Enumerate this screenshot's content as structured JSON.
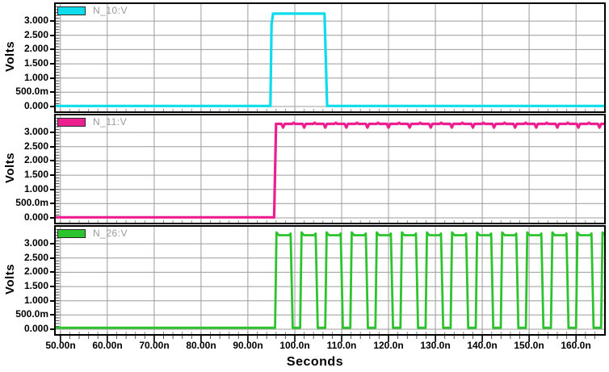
{
  "figure": {
    "background": "#ffffff",
    "frame_color": "#000000",
    "grid_color": "#9c9c9c",
    "minor_tick_color": "#444444",
    "tick_label_color": "#000000",
    "legend_text_color": "#9a9a9a"
  },
  "y_axis": {
    "title": "Volts",
    "ticks": [
      {
        "label": "0.000",
        "value": 0
      },
      {
        "label": "500.0m",
        "value": 0.5
      },
      {
        "label": "1.000",
        "value": 1
      },
      {
        "label": "1.500",
        "value": 1.5
      },
      {
        "label": "2.000",
        "value": 2
      },
      {
        "label": "2.500",
        "value": 2.5
      },
      {
        "label": "3.000",
        "value": 3
      }
    ],
    "minor_tick_step_v": 0.1,
    "range_volts": [
      -0.17,
      3.6
    ]
  },
  "x_axis": {
    "title": "Seconds",
    "ticks": [
      {
        "label": "50.00n",
        "value": 50
      },
      {
        "label": "60.00n",
        "value": 60
      },
      {
        "label": "70.00n",
        "value": 70
      },
      {
        "label": "80.00n",
        "value": 80
      },
      {
        "label": "90.00n",
        "value": 90
      },
      {
        "label": "100.0n",
        "value": 100
      },
      {
        "label": "110.0n",
        "value": 110
      },
      {
        "label": "120.0n",
        "value": 120
      },
      {
        "label": "130.0n",
        "value": 130
      },
      {
        "label": "140.0n",
        "value": 140
      },
      {
        "label": "150.0n",
        "value": 150
      },
      {
        "label": "160.0n",
        "value": 160
      }
    ],
    "minor_tick_step_ns": 2,
    "range_ns": [
      49,
      166
    ]
  },
  "panels": [
    {
      "legend": "N_10:V",
      "color": "#0cdcec"
    },
    {
      "legend": "N_11:V",
      "color": "#ec1e90"
    },
    {
      "legend": "N_26:V",
      "color": "#2cc42c"
    }
  ],
  "chart_data": {
    "type": "line",
    "title": "",
    "xlabel": "Seconds",
    "ylabel": "Volts",
    "x_range_ns": [
      49,
      166
    ],
    "y_range_volts": [
      -0.17,
      3.6
    ],
    "x_ticks_ns": [
      50,
      60,
      70,
      80,
      90,
      100,
      110,
      120,
      130,
      140,
      150,
      160
    ],
    "y_ticks_volts": [
      0,
      0.5,
      1,
      1.5,
      2,
      2.5,
      3
    ],
    "grid": true,
    "legend_position": "top-left-of-each-panel",
    "series": [
      {
        "name": "N_10:V",
        "panel": 0,
        "color": "#0cdcec",
        "shape": "pulse",
        "low_v": 0.02,
        "high_v": 3.26,
        "rise_ns": 94.8,
        "fall_ns": 106.6
      },
      {
        "name": "N_11:V",
        "panel": 1,
        "color": "#ec1e90",
        "shape": "step",
        "low_v": 0.02,
        "high_v": 3.3,
        "rise_ns": 95.6,
        "ripple_start_ns": 97.5,
        "ripple_spacing_ns": 2.25,
        "ripple_dip_v": 0.13,
        "ripple_bump_v": 0.04
      },
      {
        "name": "N_26:V",
        "panel": 2,
        "color": "#2cc42c",
        "shape": "clock",
        "low_v": 0.05,
        "high_v": 3.3,
        "first_rise_ns": 95.8,
        "period_ns": 5.35,
        "high_time_ns": 3.4,
        "pulses": 14
      }
    ]
  }
}
